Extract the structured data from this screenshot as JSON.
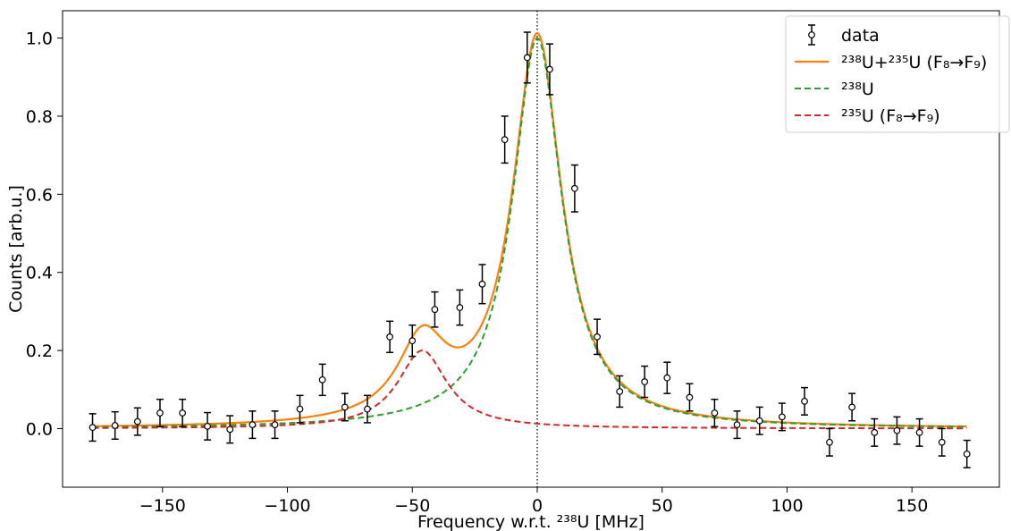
{
  "chart_data": {
    "type": "scatter",
    "xlabel": "Frequency w.r.t. ²³⁸U [MHz]",
    "ylabel": "Counts [arb.u.]",
    "xlim": [
      -190,
      185
    ],
    "ylim": [
      -0.15,
      1.07
    ],
    "xticks": [
      -150,
      -100,
      -50,
      0,
      50,
      100,
      150
    ],
    "xtick_labels": [
      "−150",
      "−100",
      "−50",
      "0",
      "50",
      "100",
      "150"
    ],
    "yticks": [
      0.0,
      0.2,
      0.4,
      0.6,
      0.8,
      1.0
    ],
    "ytick_labels": [
      "0.0",
      "0.2",
      "0.4",
      "0.6",
      "0.8",
      "1.0"
    ],
    "reference_line_x": 0,
    "legend_position": "top-right",
    "colors": {
      "data": "#000000",
      "sum": "#ff7f0e",
      "u238": "#2ca02c",
      "u235": "#d62728"
    },
    "series": [
      {
        "name": "data",
        "style": "errorbar",
        "x": [
          -178,
          -169,
          -160,
          -151,
          -142,
          -132,
          -123,
          -114,
          -105,
          -95,
          -86,
          -77,
          -68,
          -59,
          -50,
          -41,
          -31,
          -22,
          -13,
          -4,
          5,
          15,
          24,
          33,
          43,
          52,
          61,
          71,
          80,
          89,
          98,
          107,
          117,
          126,
          135,
          144,
          153,
          162,
          172
        ],
        "y": [
          0.003,
          0.008,
          0.018,
          0.04,
          0.04,
          0.006,
          -0.002,
          0.01,
          0.01,
          0.05,
          0.125,
          0.055,
          0.05,
          0.235,
          0.225,
          0.305,
          0.31,
          0.37,
          0.74,
          0.95,
          0.92,
          0.615,
          0.235,
          0.095,
          0.12,
          0.13,
          0.08,
          0.04,
          0.01,
          0.02,
          0.03,
          0.07,
          -0.035,
          0.055,
          -0.01,
          -0.005,
          -0.01,
          -0.035,
          -0.065
        ],
        "yerr": [
          0.035,
          0.035,
          0.035,
          0.035,
          0.035,
          0.035,
          0.035,
          0.035,
          0.035,
          0.035,
          0.04,
          0.035,
          0.035,
          0.04,
          0.04,
          0.045,
          0.045,
          0.05,
          0.06,
          0.065,
          0.065,
          0.06,
          0.045,
          0.04,
          0.04,
          0.04,
          0.035,
          0.035,
          0.035,
          0.035,
          0.035,
          0.035,
          0.035,
          0.035,
          0.035,
          0.035,
          0.035,
          0.035,
          0.035
        ]
      },
      {
        "name": "²³⁸U+²³⁵U (F₈→F₉)",
        "style": "solid",
        "components": [
          "²³⁸U",
          "²³⁵U (F₈→F₉)"
        ]
      },
      {
        "name": "²³⁸U",
        "style": "dashed",
        "peak": {
          "center": 0,
          "amplitude": 1.0,
          "half_width": 12
        }
      },
      {
        "name": "²³⁵U (F₈→F₉)",
        "style": "dashed",
        "peak": {
          "center": -46,
          "amplitude": 0.2,
          "half_width": 12
        }
      }
    ]
  }
}
